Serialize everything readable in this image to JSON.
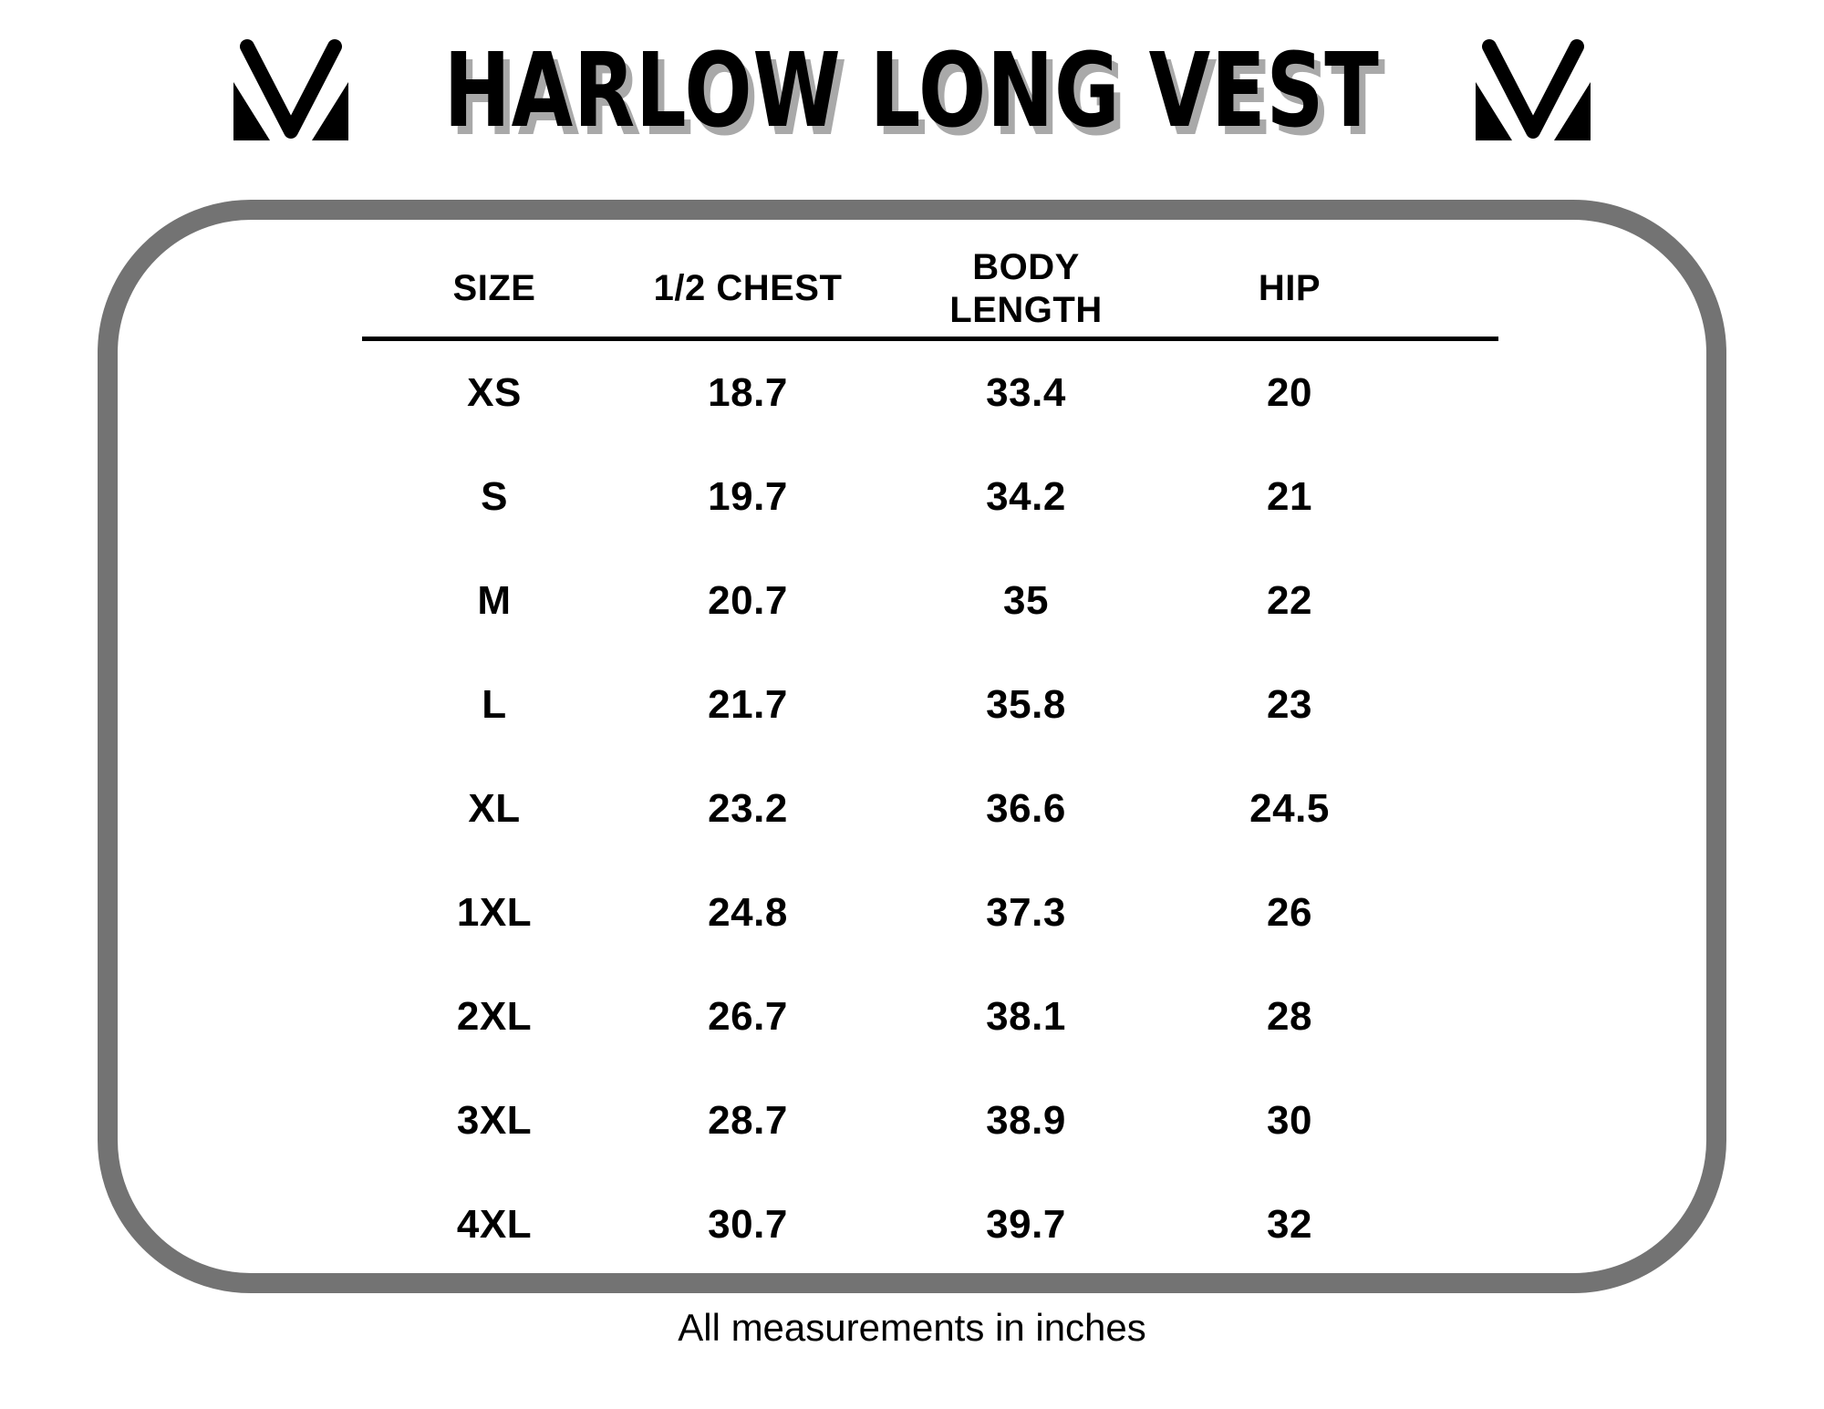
{
  "title": "HARLOW LONG VEST",
  "brand_logo": "m-chevron-logo",
  "footer_note": "All measurements in inches",
  "colors": {
    "frame_gray": "#737373",
    "title_shadow": "#a9a9a9",
    "text_black": "#000000"
  },
  "table": {
    "headers": [
      "SIZE",
      "1/2 CHEST",
      "BODY\nLENGTH",
      "HIP"
    ]
  },
  "chart_data": {
    "type": "table",
    "title": "HARLOW LONG VEST",
    "columns": [
      "SIZE",
      "1/2 CHEST",
      "BODY LENGTH",
      "HIP"
    ],
    "rows": [
      [
        "XS",
        18.7,
        33.4,
        20
      ],
      [
        "S",
        19.7,
        34.2,
        21
      ],
      [
        "M",
        20.7,
        35,
        22
      ],
      [
        "L",
        21.7,
        35.8,
        23
      ],
      [
        "XL",
        23.2,
        36.6,
        24.5
      ],
      [
        "1XL",
        24.8,
        37.3,
        26
      ],
      [
        "2XL",
        26.7,
        38.1,
        28
      ],
      [
        "3XL",
        28.7,
        38.9,
        30
      ],
      [
        "4XL",
        30.7,
        39.7,
        32
      ]
    ],
    "units": "inches",
    "note": "All measurements in inches"
  }
}
